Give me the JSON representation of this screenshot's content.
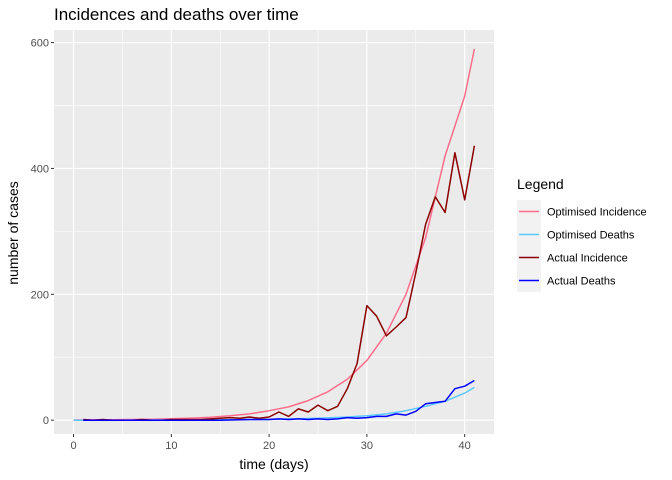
{
  "chart_data": {
    "type": "line",
    "title": "Incidences and deaths over time",
    "xlabel": "time (days)",
    "ylabel": "number of cases",
    "xlim": [
      -2,
      43
    ],
    "ylim": [
      -22,
      620
    ],
    "x_ticks": [
      0,
      10,
      20,
      30,
      40
    ],
    "y_ticks": [
      0,
      200,
      400,
      600
    ],
    "grid": true,
    "legend": {
      "title": "Legend",
      "placement": "right"
    },
    "series": [
      {
        "name": "Optimised Incidence",
        "color": "#ff6d8c",
        "x": [
          0,
          2,
          4,
          6,
          8,
          10,
          12,
          14,
          16,
          18,
          20,
          22,
          24,
          26,
          28,
          30,
          32,
          34,
          36,
          38,
          40,
          41
        ],
        "values": [
          0.3,
          0.5,
          0.7,
          1.0,
          1.5,
          2.2,
          3.2,
          4.7,
          6.9,
          10,
          15,
          21,
          31,
          45,
          65,
          95,
          138,
          200,
          290,
          420,
          515,
          590
        ]
      },
      {
        "name": "Optimised Deaths",
        "color": "#5bc8ff",
        "x": [
          0,
          5,
          10,
          15,
          20,
          25,
          28,
          30,
          32,
          34,
          36,
          38,
          40,
          41
        ],
        "values": [
          0,
          0,
          0.2,
          0.5,
          1.2,
          3,
          5,
          7,
          10,
          15,
          22,
          30,
          43,
          52
        ]
      },
      {
        "name": "Actual Incidence",
        "color": "#8b0000",
        "x": [
          1,
          2,
          3,
          4,
          5,
          6,
          7,
          8,
          9,
          10,
          11,
          12,
          13,
          14,
          15,
          16,
          17,
          18,
          19,
          20,
          21,
          22,
          23,
          24,
          25,
          26,
          27,
          28,
          29,
          30,
          31,
          32,
          33,
          34,
          35,
          36,
          37,
          38,
          39,
          40,
          41
        ],
        "values": [
          1,
          0,
          1,
          0,
          0,
          0,
          1,
          0,
          0,
          1,
          1,
          1,
          1,
          2,
          3,
          4,
          3,
          5,
          3,
          5,
          13,
          6,
          18,
          13,
          24,
          15,
          22,
          50,
          90,
          182,
          165,
          134,
          148,
          163,
          234,
          311,
          355,
          330,
          425,
          350,
          436
        ]
      },
      {
        "name": "Actual Deaths",
        "color": "#0000ff",
        "x": [
          1,
          5,
          10,
          15,
          18,
          20,
          21,
          22,
          23,
          24,
          25,
          26,
          27,
          28,
          29,
          30,
          31,
          32,
          33,
          34,
          35,
          36,
          37,
          38,
          39,
          40,
          41
        ],
        "values": [
          0,
          0,
          0,
          0,
          1,
          1,
          2,
          1,
          2,
          1,
          2,
          1,
          2,
          4,
          3,
          4,
          6,
          6,
          10,
          8,
          14,
          26,
          28,
          30,
          50,
          54,
          63
        ]
      }
    ]
  }
}
